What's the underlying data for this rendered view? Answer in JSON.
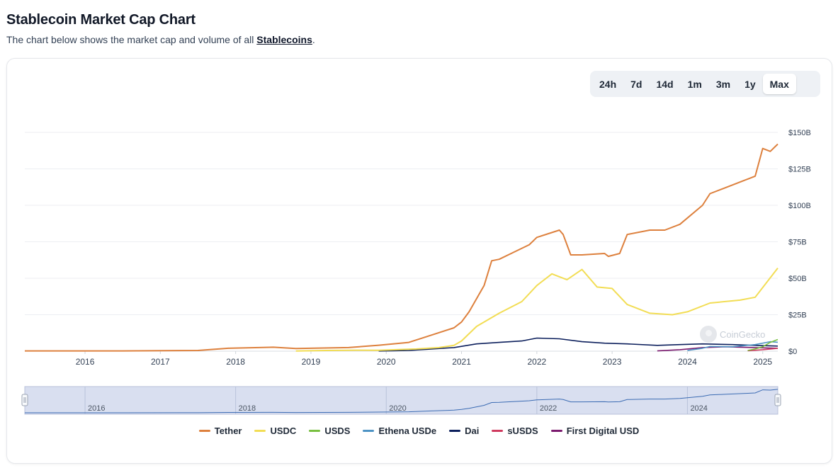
{
  "page": {
    "title": "Stablecoin Market Cap Chart",
    "subtitle_before": "The chart below shows the market cap and volume of all ",
    "subtitle_link": "Stablecoins",
    "subtitle_after": "."
  },
  "range_buttons": [
    "24h",
    "7d",
    "14d",
    "1m",
    "3m",
    "1y",
    "Max"
  ],
  "active_range": "Max",
  "watermark": "CoinGecko",
  "icons": {
    "watermark_logo": "coingecko-logo-icon",
    "left_handle": "drag-handle-icon",
    "right_handle": "drag-handle-icon"
  },
  "navigator": {
    "year_labels": [
      "2016",
      "2018",
      "2020",
      "2022",
      "2024"
    ]
  },
  "colors": {
    "Tether": "#dd803d",
    "USDC": "#f2dd54",
    "USDS": "#78bf40",
    "Ethena USDe": "#4d93c4",
    "Dai": "#0c1f5c",
    "sUSDS": "#cf3a5e",
    "First Digital USD": "#7b1a6e"
  },
  "chart_data": {
    "type": "line",
    "xlabel": "",
    "ylabel": "",
    "x_tick_labels": [
      "2016",
      "2017",
      "2018",
      "2019",
      "2020",
      "2021",
      "2022",
      "2023",
      "2024",
      "2025"
    ],
    "y_tick_labels": [
      "$0",
      "$25B",
      "$50B",
      "$75B",
      "$100B",
      "$125B",
      "$150B"
    ],
    "xlim": [
      2015.2,
      2025.2
    ],
    "ylim": [
      0,
      150
    ],
    "y_unit": "B USD",
    "y_axis_side": "right",
    "grid": "horizontal",
    "legend_position": "bottom",
    "series": [
      {
        "name": "Tether",
        "points": [
          [
            2015.2,
            0.2
          ],
          [
            2016.5,
            0.2
          ],
          [
            2017.5,
            0.5
          ],
          [
            2017.9,
            2
          ],
          [
            2018.5,
            2.7
          ],
          [
            2018.8,
            1.8
          ],
          [
            2019.5,
            2.5
          ],
          [
            2019.9,
            4.1
          ],
          [
            2020.3,
            6
          ],
          [
            2020.6,
            11
          ],
          [
            2020.9,
            16
          ],
          [
            2021.0,
            20
          ],
          [
            2021.1,
            27
          ],
          [
            2021.3,
            45
          ],
          [
            2021.4,
            62
          ],
          [
            2021.5,
            63
          ],
          [
            2021.7,
            68
          ],
          [
            2021.9,
            73
          ],
          [
            2022.0,
            78
          ],
          [
            2022.3,
            83
          ],
          [
            2022.35,
            80
          ],
          [
            2022.45,
            66
          ],
          [
            2022.6,
            66
          ],
          [
            2022.9,
            67
          ],
          [
            2022.95,
            65
          ],
          [
            2023.1,
            67
          ],
          [
            2023.2,
            80
          ],
          [
            2023.5,
            83
          ],
          [
            2023.7,
            83
          ],
          [
            2023.9,
            87
          ],
          [
            2024.2,
            100
          ],
          [
            2024.3,
            108
          ],
          [
            2024.5,
            112
          ],
          [
            2024.8,
            118
          ],
          [
            2024.9,
            120
          ],
          [
            2025.0,
            139
          ],
          [
            2025.1,
            137
          ],
          [
            2025.2,
            142
          ]
        ]
      },
      {
        "name": "USDC",
        "points": [
          [
            2018.8,
            0.1
          ],
          [
            2019.2,
            0.5
          ],
          [
            2019.6,
            0.7
          ],
          [
            2019.9,
            0.6
          ],
          [
            2020.4,
            1.5
          ],
          [
            2020.7,
            2.5
          ],
          [
            2020.9,
            4
          ],
          [
            2021.0,
            7
          ],
          [
            2021.2,
            17
          ],
          [
            2021.5,
            26
          ],
          [
            2021.8,
            34
          ],
          [
            2022.0,
            45
          ],
          [
            2022.2,
            53
          ],
          [
            2022.4,
            49
          ],
          [
            2022.6,
            56
          ],
          [
            2022.8,
            44
          ],
          [
            2023.0,
            43
          ],
          [
            2023.2,
            32
          ],
          [
            2023.5,
            26
          ],
          [
            2023.8,
            25
          ],
          [
            2024.0,
            27
          ],
          [
            2024.3,
            33
          ],
          [
            2024.7,
            35
          ],
          [
            2024.9,
            37
          ],
          [
            2025.2,
            57
          ]
        ]
      },
      {
        "name": "USDS",
        "points": [
          [
            2024.8,
            0.5
          ],
          [
            2024.9,
            1.5
          ],
          [
            2025.0,
            3
          ],
          [
            2025.1,
            6
          ],
          [
            2025.2,
            8
          ]
        ]
      },
      {
        "name": "Ethena USDe",
        "points": [
          [
            2024.0,
            0.5
          ],
          [
            2024.2,
            2
          ],
          [
            2024.3,
            3.2
          ],
          [
            2024.6,
            3
          ],
          [
            2024.9,
            4.5
          ],
          [
            2025.1,
            6.5
          ],
          [
            2025.2,
            6.1
          ]
        ]
      },
      {
        "name": "Dai",
        "points": [
          [
            2019.9,
            0.1
          ],
          [
            2020.3,
            0.5
          ],
          [
            2020.6,
            1.5
          ],
          [
            2020.9,
            2.5
          ],
          [
            2021.2,
            5
          ],
          [
            2021.5,
            6
          ],
          [
            2021.8,
            7
          ],
          [
            2022.0,
            9
          ],
          [
            2022.3,
            8.5
          ],
          [
            2022.6,
            6.5
          ],
          [
            2022.9,
            5.5
          ],
          [
            2023.2,
            5
          ],
          [
            2023.6,
            4
          ],
          [
            2023.9,
            4.5
          ],
          [
            2024.2,
            5
          ],
          [
            2024.6,
            4.5
          ],
          [
            2024.9,
            4
          ],
          [
            2025.2,
            3.5
          ]
        ]
      },
      {
        "name": "sUSDS",
        "points": [
          [
            2024.8,
            0.3
          ],
          [
            2025.0,
            1
          ],
          [
            2025.2,
            2
          ]
        ]
      },
      {
        "name": "First Digital USD",
        "points": [
          [
            2023.6,
            0.2
          ],
          [
            2023.9,
            1
          ],
          [
            2024.2,
            2.5
          ],
          [
            2024.5,
            3
          ],
          [
            2024.9,
            2.5
          ],
          [
            2025.2,
            2
          ]
        ]
      }
    ]
  }
}
